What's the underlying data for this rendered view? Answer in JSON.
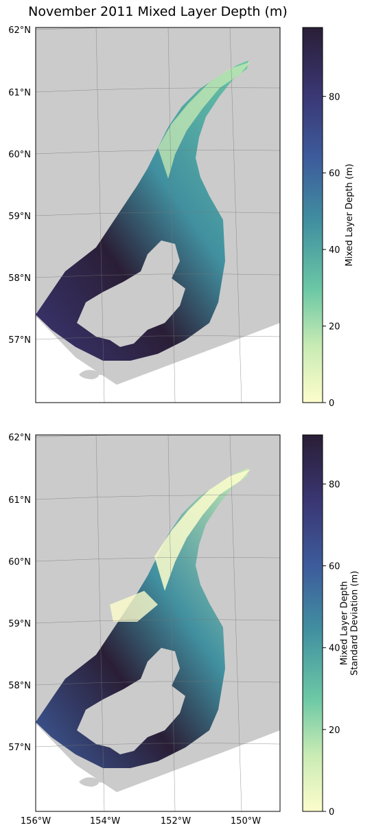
{
  "title": "November 2011 Mixed Layer Depth (m)",
  "chart_data": [
    {
      "type": "heatmap",
      "name": "mixed-layer-depth-map",
      "lat_labels": [
        "62°N",
        "61°N",
        "60°N",
        "59°N",
        "58°N",
        "57°N"
      ],
      "lon_labels": [],
      "colorbar": {
        "label_lines": [
          "Mixed Layer Depth (m)"
        ],
        "ticks": [
          "0",
          "20",
          "40",
          "60",
          "80"
        ],
        "tick_values": [
          0,
          20,
          40,
          60,
          80
        ],
        "vmin": 0,
        "vmax": 98
      }
    },
    {
      "type": "heatmap",
      "name": "mixed-layer-depth-std-map",
      "lat_labels": [
        "62°N",
        "61°N",
        "60°N",
        "59°N",
        "58°N",
        "57°N"
      ],
      "lon_labels": [
        "156°W",
        "154°W",
        "152°W",
        "150°W"
      ],
      "colorbar": {
        "label_lines": [
          "Mixed Layer Depth",
          "Standard Deviation (m)"
        ],
        "ticks": [
          "0",
          "20",
          "40",
          "60",
          "80"
        ],
        "tick_values": [
          0,
          20,
          40,
          60,
          80
        ],
        "vmin": 0,
        "vmax": 92
      }
    }
  ],
  "colors": {
    "land": "#cbcbcb",
    "colormap": [
      "#fdfdcc",
      "#c9ebb4",
      "#6cc8a5",
      "#4190a0",
      "#3d5c9c",
      "#3a3774",
      "#2a1e36"
    ]
  }
}
